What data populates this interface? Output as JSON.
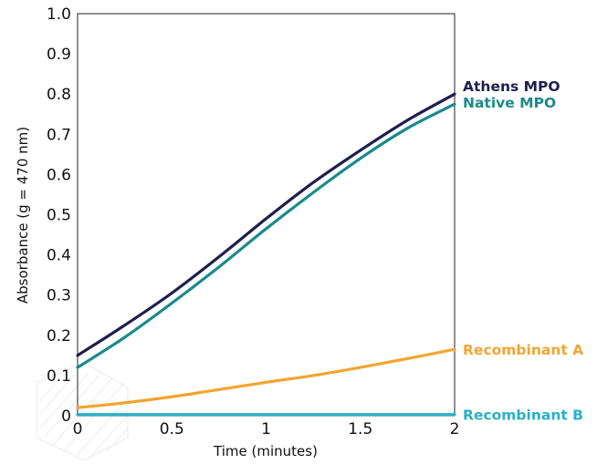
{
  "chart_data": {
    "type": "line",
    "title": "",
    "xlabel": "Time (minutes)",
    "ylabel": "Absorbance (g = 470 nm)",
    "xlim": [
      0,
      2
    ],
    "ylim": [
      0,
      1.0
    ],
    "xticks": [
      "0",
      "0.5",
      "1",
      "1.5",
      "2"
    ],
    "yticks": [
      "0",
      "0.1",
      "0.2",
      "0.3",
      "0.4",
      "0.5",
      "0.6",
      "0.7",
      "0.8",
      "0.9",
      "1.0"
    ],
    "grid": false,
    "legend": "labels at right end of lines",
    "series": [
      {
        "name": "Athens MPO",
        "color": "#1f1f4d",
        "x": [
          0,
          0.25,
          0.5,
          0.75,
          1.0,
          1.25,
          1.5,
          1.75,
          2.0
        ],
        "y": [
          0.15,
          0.225,
          0.305,
          0.395,
          0.49,
          0.58,
          0.66,
          0.735,
          0.8
        ]
      },
      {
        "name": "Native MPO",
        "color": "#1b8a8a",
        "x": [
          0,
          0.25,
          0.5,
          0.75,
          1.0,
          1.25,
          1.5,
          1.75,
          2.0
        ],
        "y": [
          0.12,
          0.195,
          0.28,
          0.37,
          0.465,
          0.555,
          0.64,
          0.715,
          0.775
        ]
      },
      {
        "name": "Recombinant A",
        "color": "#f2a531",
        "x": [
          0,
          0.25,
          0.5,
          0.75,
          1.0,
          1.25,
          1.5,
          1.75,
          2.0
        ],
        "y": [
          0.02,
          0.032,
          0.047,
          0.065,
          0.083,
          0.1,
          0.12,
          0.142,
          0.165
        ]
      },
      {
        "name": "Recombinant B",
        "color": "#29b0c8",
        "x": [
          0,
          0.5,
          1.0,
          1.5,
          2.0
        ],
        "y": [
          0.003,
          0.003,
          0.003,
          0.003,
          0.003
        ]
      }
    ]
  }
}
